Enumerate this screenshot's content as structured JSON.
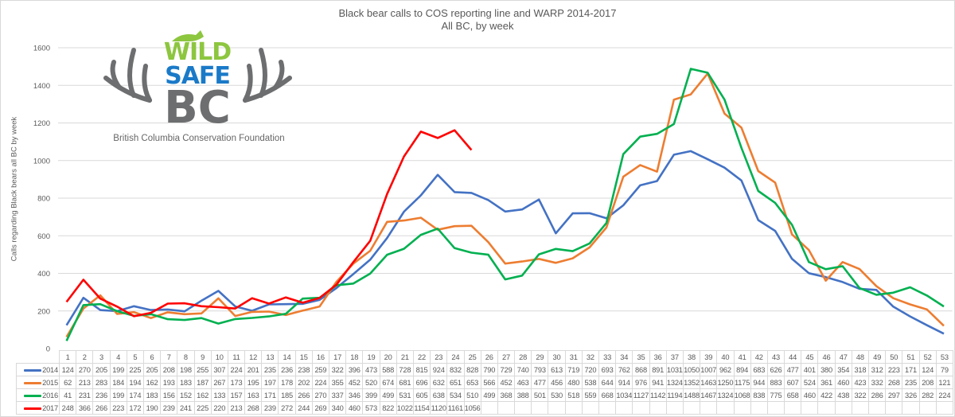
{
  "chart_data": {
    "type": "line",
    "title": "Black bear calls to COS reporting line and WARP 2014-2017",
    "subtitle": "All BC, by week",
    "xlabel": "",
    "ylabel": "Calls regarding Black bears all BC by week",
    "ylim": [
      0,
      1600
    ],
    "yticks": [
      0,
      200,
      400,
      600,
      800,
      1000,
      1200,
      1400,
      1600
    ],
    "grid": true,
    "legend_position": "data-table",
    "categories": [
      1,
      2,
      3,
      4,
      5,
      6,
      7,
      8,
      9,
      10,
      11,
      12,
      13,
      14,
      15,
      16,
      17,
      18,
      19,
      20,
      21,
      22,
      23,
      24,
      25,
      26,
      27,
      28,
      29,
      30,
      31,
      32,
      33,
      34,
      35,
      36,
      37,
      38,
      39,
      40,
      41,
      42,
      43,
      44,
      45,
      46,
      47,
      48,
      49,
      50,
      51,
      52,
      53
    ],
    "series": [
      {
        "name": "2014",
        "color": "#4472c4",
        "values": [
          124,
          270,
          205,
          199,
          225,
          205,
          208,
          198,
          255,
          307,
          224,
          201,
          235,
          236,
          238,
          259,
          322,
          396,
          473,
          588,
          728,
          815,
          924,
          832,
          828,
          790,
          729,
          740,
          793,
          613,
          719,
          720,
          693,
          762,
          868,
          891,
          1031,
          1050,
          1007,
          962,
          894,
          683,
          626,
          477,
          401,
          380,
          354,
          318,
          312,
          223,
          171,
          124,
          79
        ]
      },
      {
        "name": "2015",
        "color": "#ed7d31",
        "values": [
          62,
          213,
          283,
          184,
          194,
          162,
          193,
          183,
          187,
          267,
          173,
          195,
          197,
          178,
          202,
          224,
          355,
          452,
          520,
          674,
          681,
          696,
          632,
          651,
          653,
          566,
          452,
          463,
          477,
          456,
          480,
          538,
          644,
          914,
          976,
          941,
          1324,
          1352,
          1463,
          1250,
          1175,
          944,
          883,
          607,
          524,
          361,
          460,
          423,
          332,
          268,
          235,
          208,
          121
        ]
      },
      {
        "name": "2016",
        "color": "#00b050",
        "values": [
          41,
          231,
          236,
          199,
          174,
          183,
          156,
          152,
          162,
          133,
          157,
          163,
          171,
          185,
          266,
          270,
          337,
          346,
          399,
          499,
          531,
          605,
          638,
          534,
          510,
          499,
          368,
          388,
          501,
          530,
          518,
          559,
          668,
          1034,
          1127,
          1142,
          1194,
          1488,
          1467,
          1324,
          1068,
          838,
          775,
          658,
          460,
          422,
          438,
          322,
          286,
          297,
          326,
          282,
          224
        ]
      },
      {
        "name": "2017",
        "color": "#ff0000",
        "values": [
          248,
          366,
          266,
          223,
          172,
          190,
          239,
          241,
          225,
          220,
          213,
          268,
          239,
          272,
          244,
          269,
          340,
          460,
          573,
          822,
          1022,
          1154,
          1120,
          1161,
          1056
        ]
      }
    ]
  },
  "logo": {
    "line1": "WILD",
    "line2": "SAFE",
    "line3": "BC",
    "caption": "British Columbia Conservation Foundation"
  }
}
